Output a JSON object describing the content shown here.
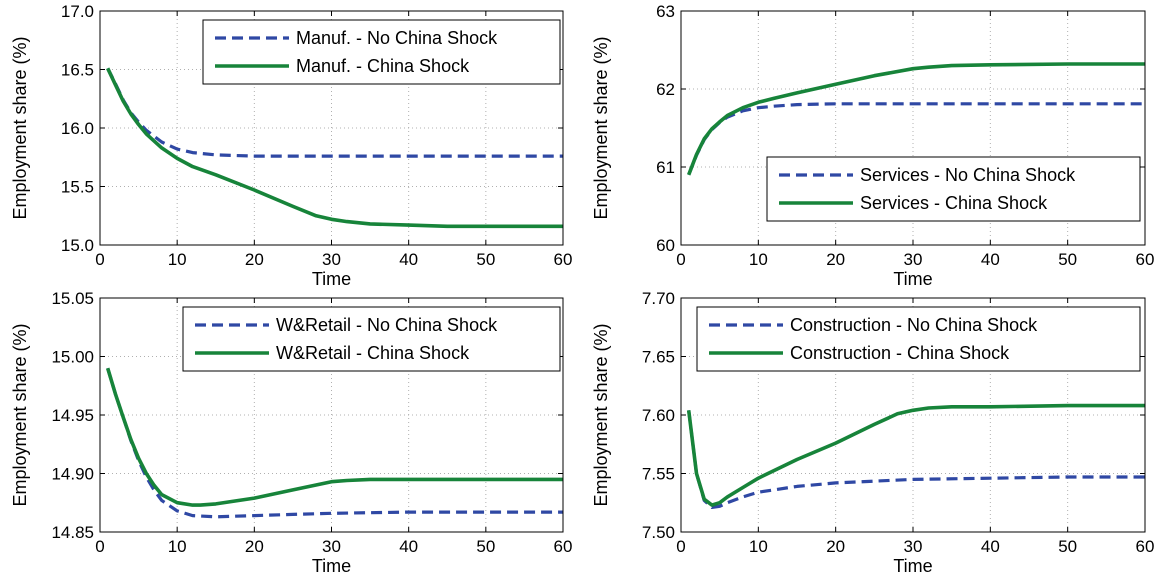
{
  "colors": {
    "no_shock": "#2f48a4",
    "shock": "#17843a",
    "grid": "#b0b0b0",
    "axis": "#000000"
  },
  "chart_data": [
    {
      "type": "line",
      "xlabel": "Time",
      "ylabel": "Employment share (%)",
      "xlim": [
        0,
        60
      ],
      "ylim": [
        15.0,
        17.0
      ],
      "xticks": [
        0,
        10,
        20,
        30,
        40,
        50,
        60
      ],
      "yticks": [
        15.0,
        15.5,
        16.0,
        16.5,
        17.0
      ],
      "ytick_labels": [
        "15.0",
        "15.5",
        "16.0",
        "16.5",
        "17.0"
      ],
      "grid": true,
      "legend_position": "top-right",
      "series": [
        {
          "name": "Manuf. - No China Shock",
          "style": "dashed",
          "x": [
            1,
            2,
            3,
            4,
            5,
            6,
            8,
            10,
            12,
            15,
            20,
            25,
            30,
            40,
            50,
            60
          ],
          "y": [
            16.51,
            16.38,
            16.24,
            16.13,
            16.05,
            15.98,
            15.88,
            15.82,
            15.79,
            15.77,
            15.76,
            15.76,
            15.76,
            15.76,
            15.76,
            15.76
          ]
        },
        {
          "name": "Manuf. - China Shock",
          "style": "solid",
          "x": [
            1,
            2,
            3,
            4,
            5,
            6,
            8,
            10,
            12,
            15,
            20,
            25,
            28,
            30,
            32,
            35,
            40,
            45,
            50,
            60
          ],
          "y": [
            16.51,
            16.37,
            16.23,
            16.12,
            16.03,
            15.95,
            15.83,
            15.74,
            15.67,
            15.6,
            15.47,
            15.33,
            15.25,
            15.22,
            15.2,
            15.18,
            15.17,
            15.16,
            15.16,
            15.16
          ]
        }
      ]
    },
    {
      "type": "line",
      "xlabel": "Time",
      "ylabel": "Employment share (%)",
      "xlim": [
        0,
        60
      ],
      "ylim": [
        60,
        63
      ],
      "xticks": [
        0,
        10,
        20,
        30,
        40,
        50,
        60
      ],
      "yticks": [
        60,
        61,
        62,
        63
      ],
      "ytick_labels": [
        "60",
        "61",
        "62",
        "63"
      ],
      "grid": true,
      "legend_position": "bottom-right",
      "series": [
        {
          "name": "Services - No China Shock",
          "style": "dashed",
          "x": [
            1,
            2,
            3,
            4,
            5,
            6,
            8,
            10,
            12,
            15,
            20,
            30,
            40,
            60
          ],
          "y": [
            60.9,
            61.15,
            61.35,
            61.48,
            61.57,
            61.64,
            61.72,
            61.76,
            61.78,
            61.8,
            61.81,
            61.81,
            61.81,
            61.81
          ]
        },
        {
          "name": "Services - China Shock",
          "style": "solid",
          "x": [
            1,
            2,
            3,
            4,
            5,
            6,
            8,
            10,
            12,
            15,
            20,
            25,
            30,
            32,
            35,
            40,
            50,
            60
          ],
          "y": [
            60.9,
            61.16,
            61.36,
            61.49,
            61.58,
            61.66,
            61.76,
            61.83,
            61.88,
            61.95,
            62.06,
            62.17,
            62.26,
            62.28,
            62.3,
            62.31,
            62.32,
            62.32
          ]
        }
      ]
    },
    {
      "type": "line",
      "xlabel": "Time",
      "ylabel": "Employment share (%)",
      "xlim": [
        0,
        60
      ],
      "ylim": [
        14.85,
        15.05
      ],
      "xticks": [
        0,
        10,
        20,
        30,
        40,
        50,
        60
      ],
      "yticks": [
        14.85,
        14.9,
        14.95,
        15.0,
        15.05
      ],
      "ytick_labels": [
        "14.85",
        "14.90",
        "14.95",
        "15.00",
        "15.05"
      ],
      "grid": true,
      "legend_position": "top-right",
      "series": [
        {
          "name": "W&Retail - No China Shock",
          "style": "dashed",
          "x": [
            1,
            2,
            3,
            4,
            5,
            6,
            7,
            8,
            10,
            12,
            15,
            20,
            25,
            30,
            40,
            50,
            60
          ],
          "y": [
            14.99,
            14.968,
            14.948,
            14.928,
            14.911,
            14.897,
            14.886,
            14.877,
            14.868,
            14.864,
            14.863,
            14.864,
            14.865,
            14.866,
            14.867,
            14.867,
            14.867
          ]
        },
        {
          "name": "W&Retail - China Shock",
          "style": "solid",
          "x": [
            1,
            2,
            3,
            4,
            5,
            6,
            7,
            8,
            10,
            12,
            13,
            15,
            20,
            25,
            30,
            32,
            35,
            40,
            50,
            60
          ],
          "y": [
            14.99,
            14.968,
            14.948,
            14.929,
            14.913,
            14.9,
            14.89,
            14.882,
            14.875,
            14.873,
            14.873,
            14.874,
            14.879,
            14.886,
            14.893,
            14.894,
            14.895,
            14.895,
            14.895,
            14.895
          ]
        }
      ]
    },
    {
      "type": "line",
      "xlabel": "Time",
      "ylabel": "Employment share (%)",
      "xlim": [
        0,
        60
      ],
      "ylim": [
        7.5,
        7.7
      ],
      "xticks": [
        0,
        10,
        20,
        30,
        40,
        50,
        60
      ],
      "yticks": [
        7.5,
        7.55,
        7.6,
        7.65,
        7.7
      ],
      "ytick_labels": [
        "7.50",
        "7.55",
        "7.60",
        "7.65",
        "7.70"
      ],
      "grid": true,
      "legend_position": "top-right",
      "series": [
        {
          "name": "Construction - No China Shock",
          "style": "dashed",
          "x": [
            1,
            2,
            3,
            4,
            5,
            6,
            8,
            10,
            15,
            20,
            30,
            40,
            50,
            60
          ],
          "y": [
            7.604,
            7.55,
            7.527,
            7.521,
            7.522,
            7.525,
            7.53,
            7.534,
            7.539,
            7.542,
            7.545,
            7.546,
            7.547,
            7.547
          ]
        },
        {
          "name": "Construction  - China Shock",
          "style": "solid",
          "x": [
            1,
            2,
            3,
            4,
            5,
            6,
            8,
            10,
            15,
            20,
            25,
            28,
            30,
            32,
            35,
            40,
            50,
            60
          ],
          "y": [
            7.604,
            7.55,
            7.528,
            7.523,
            7.525,
            7.53,
            7.538,
            7.546,
            7.562,
            7.576,
            7.592,
            7.601,
            7.604,
            7.606,
            7.607,
            7.607,
            7.608,
            7.608
          ]
        }
      ]
    }
  ]
}
